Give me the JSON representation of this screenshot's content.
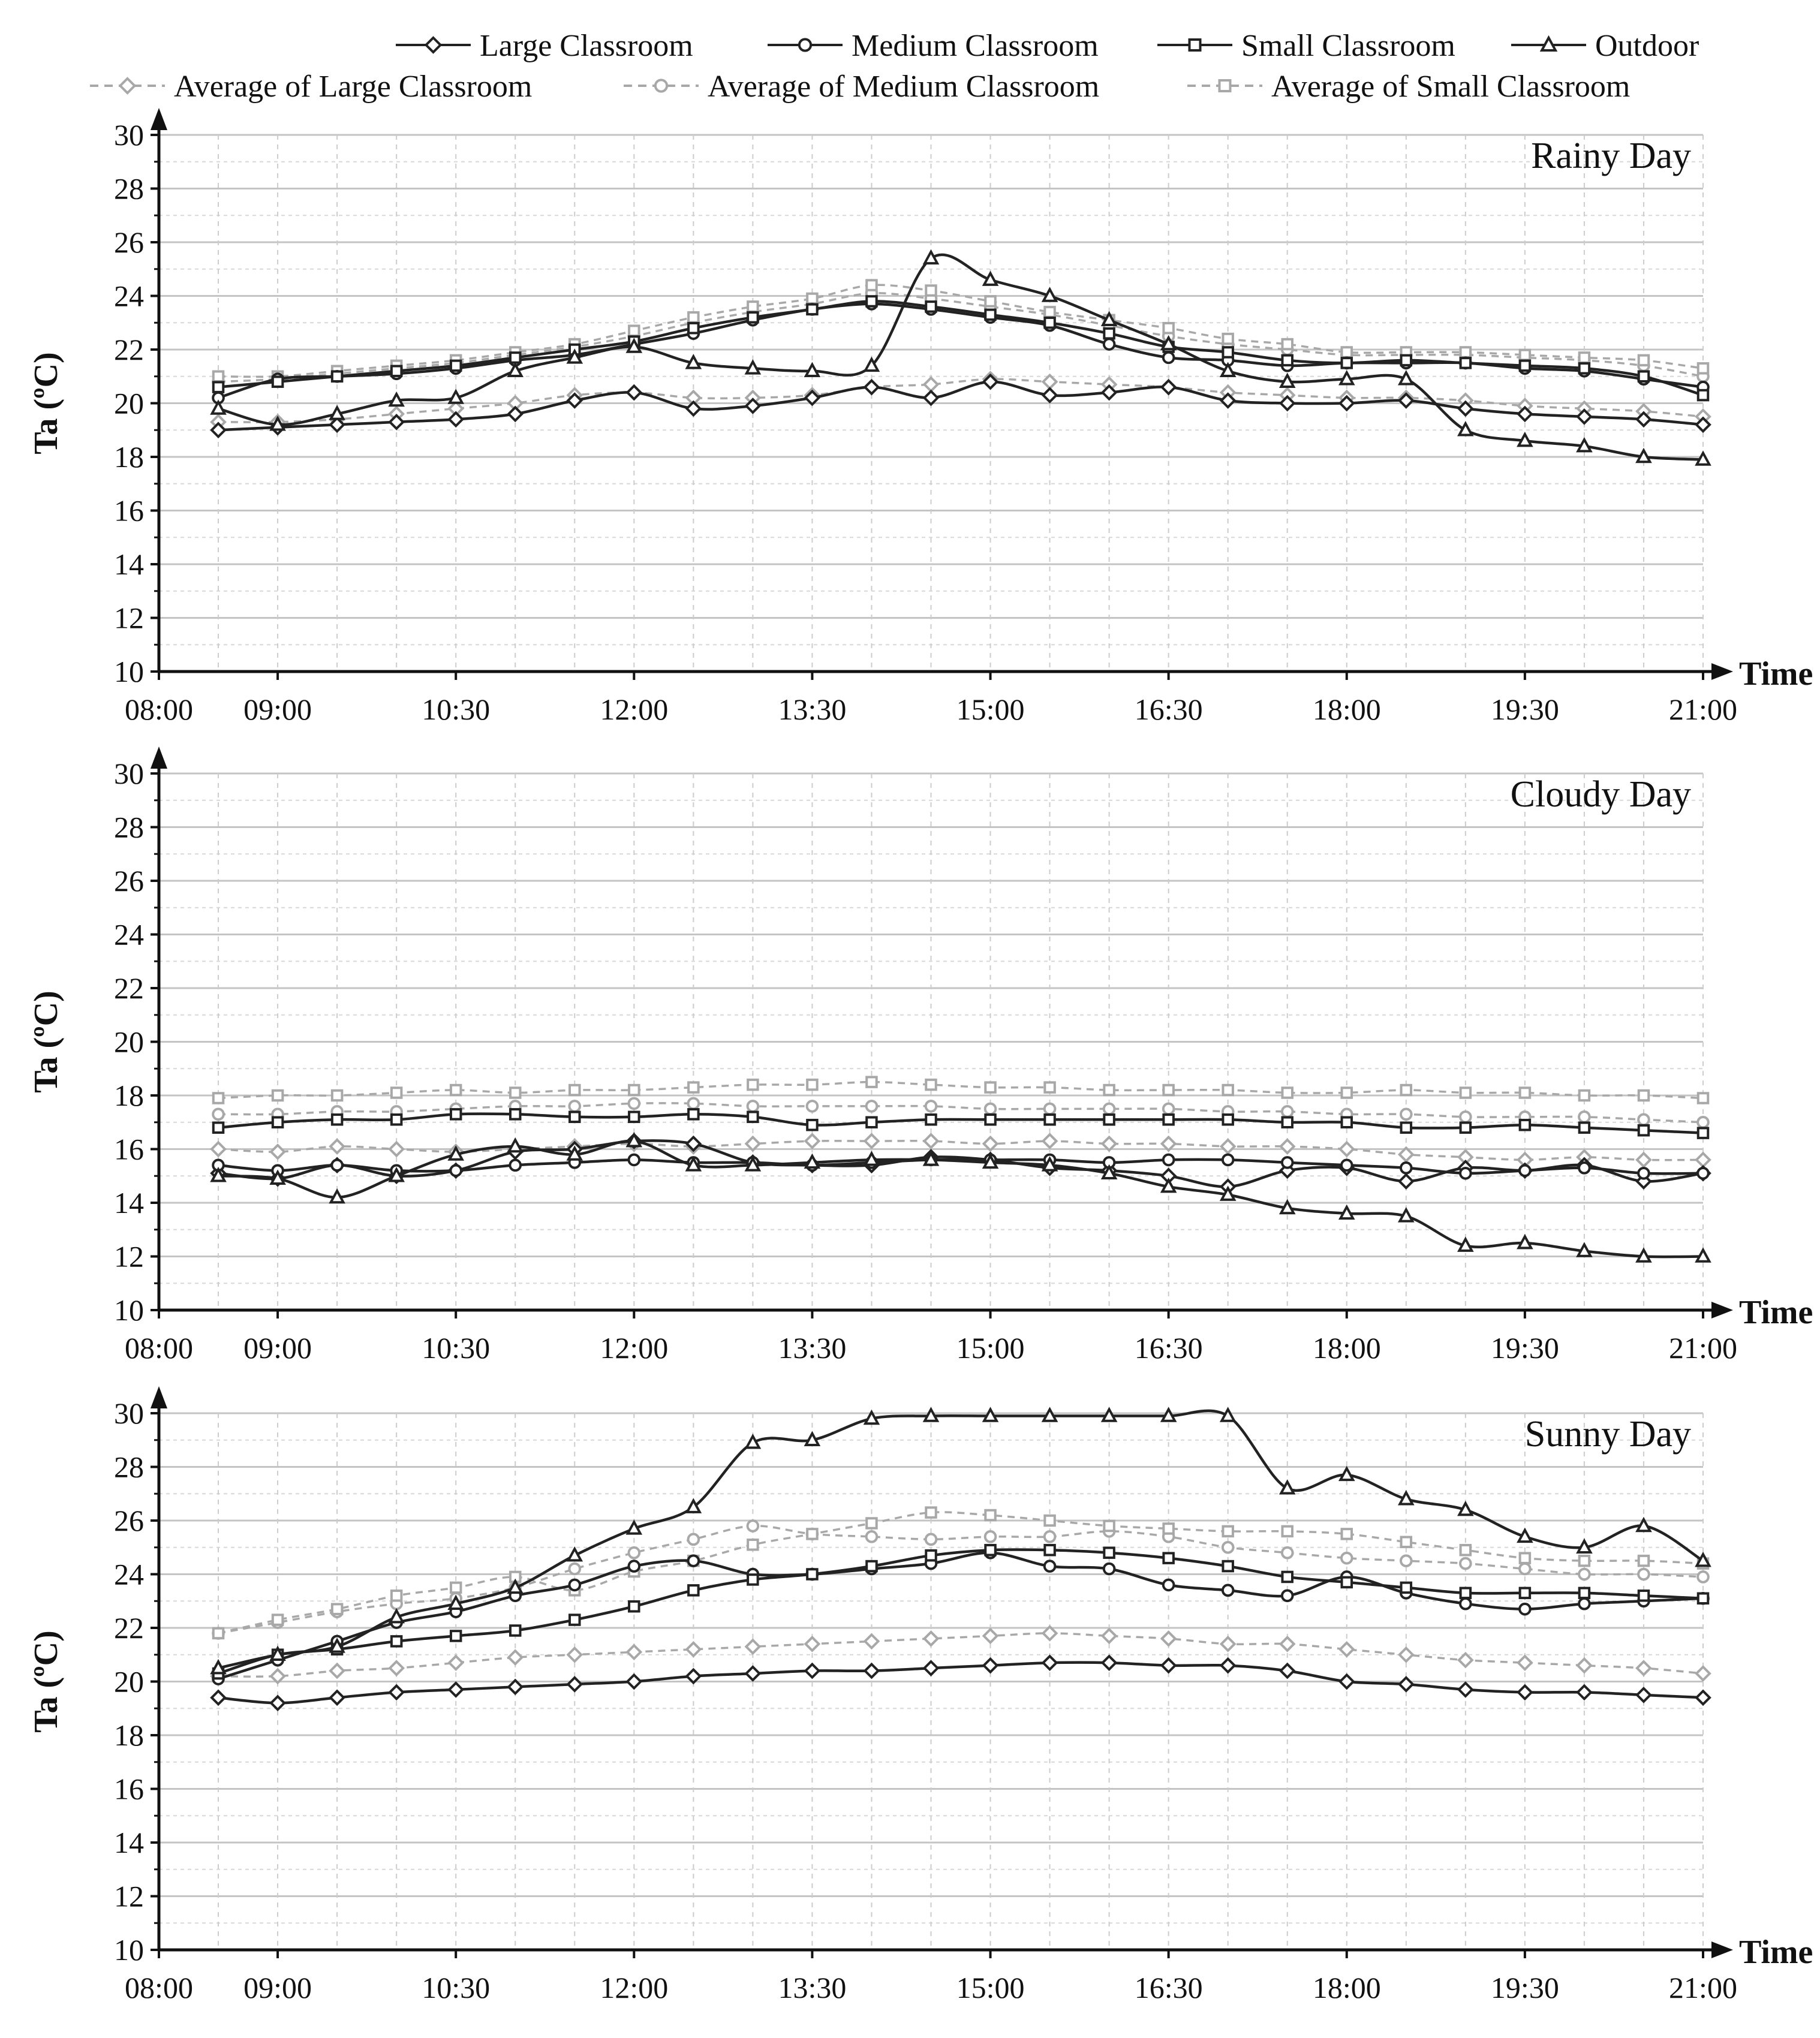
{
  "chart_data": {
    "type": "line",
    "legend": {
      "position": "top",
      "entries": [
        {
          "key": "large",
          "label": "Large Classroom",
          "marker": "diamond",
          "style": "solid"
        },
        {
          "key": "medium",
          "label": "Medium Classroom",
          "marker": "circle",
          "style": "solid"
        },
        {
          "key": "small",
          "label": "Small Classroom",
          "marker": "square",
          "style": "solid"
        },
        {
          "key": "outdoor",
          "label": "Outdoor",
          "marker": "triangle",
          "style": "solid"
        },
        {
          "key": "avg_large",
          "label": "Average of  Large Classroom",
          "marker": "diamond",
          "style": "dashed"
        },
        {
          "key": "avg_medium",
          "label": "Average of  Medium Classroom",
          "marker": "circle",
          "style": "dashed"
        },
        {
          "key": "avg_small",
          "label": "Average of  Small Classroom",
          "marker": "square",
          "style": "dashed"
        }
      ]
    },
    "colors": {
      "solid": "#222222",
      "dashed": "#a8a8a8",
      "grid": "#c8c8c8",
      "axis": "#111111"
    },
    "xlabel": "Time",
    "ylabel": "Ta (ºC)",
    "x_tick_hours": [
      8,
      9,
      10.5,
      12,
      13.5,
      15,
      16.5,
      18,
      19.5,
      21
    ],
    "x_tick_labels": [
      "08:00",
      "09:00",
      "10:30",
      "12:00",
      "13:30",
      "15:00",
      "16:30",
      "18:00",
      "19:30",
      "21:00"
    ],
    "xlim_hours": [
      8,
      21
    ],
    "ylim": [
      10,
      30
    ],
    "y_ticks": [
      10,
      12,
      14,
      16,
      18,
      20,
      22,
      24,
      26,
      28,
      30
    ],
    "x_hours": [
      8.5,
      9,
      9.5,
      10,
      10.5,
      11,
      11.5,
      12,
      12.5,
      13,
      13.5,
      14,
      14.5,
      15,
      15.5,
      16,
      16.5,
      17,
      17.5,
      18,
      18.5,
      19,
      19.5,
      20,
      20.5,
      21
    ],
    "panels": [
      {
        "title": "Rainy Day",
        "series": [
          {
            "key": "large",
            "values": [
              19.0,
              19.1,
              19.2,
              19.3,
              19.4,
              19.6,
              20.1,
              20.4,
              19.8,
              19.9,
              20.2,
              20.6,
              20.2,
              20.8,
              20.3,
              20.4,
              20.6,
              20.1,
              20.0,
              20.0,
              20.1,
              19.8,
              19.6,
              19.5,
              19.4,
              19.2
            ]
          },
          {
            "key": "medium",
            "values": [
              20.2,
              20.9,
              21.0,
              21.1,
              21.3,
              21.6,
              21.8,
              22.2,
              22.6,
              23.1,
              23.5,
              23.7,
              23.5,
              23.2,
              22.9,
              22.2,
              21.7,
              21.6,
              21.4,
              21.5,
              21.5,
              21.5,
              21.3,
              21.2,
              20.9,
              20.6
            ]
          },
          {
            "key": "small",
            "values": [
              20.6,
              20.8,
              21.0,
              21.2,
              21.4,
              21.7,
              22.0,
              22.3,
              22.8,
              23.2,
              23.5,
              23.8,
              23.6,
              23.3,
              23.0,
              22.6,
              22.1,
              21.9,
              21.6,
              21.5,
              21.6,
              21.5,
              21.4,
              21.3,
              21.0,
              20.3
            ]
          },
          {
            "key": "outdoor",
            "values": [
              19.8,
              19.2,
              19.6,
              20.1,
              20.2,
              21.2,
              21.7,
              22.1,
              21.5,
              21.3,
              21.2,
              21.4,
              25.4,
              24.6,
              24.0,
              23.1,
              22.2,
              21.2,
              20.8,
              20.9,
              20.9,
              19.0,
              18.6,
              18.4,
              18.0,
              17.9
            ]
          },
          {
            "key": "avg_large",
            "values": [
              19.3,
              19.3,
              19.4,
              19.6,
              19.8,
              20.0,
              20.3,
              20.4,
              20.2,
              20.2,
              20.3,
              20.6,
              20.7,
              20.9,
              20.8,
              20.7,
              20.6,
              20.4,
              20.3,
              20.2,
              20.2,
              20.1,
              19.9,
              19.8,
              19.7,
              19.5
            ]
          },
          {
            "key": "avg_medium",
            "values": [
              20.8,
              20.9,
              21.1,
              21.3,
              21.5,
              21.8,
              22.1,
              22.5,
              23.0,
              23.4,
              23.7,
              24.1,
              23.9,
              23.6,
              23.3,
              22.9,
              22.5,
              22.2,
              22.0,
              21.8,
              21.8,
              21.8,
              21.7,
              21.6,
              21.4,
              21.0
            ]
          },
          {
            "key": "avg_small",
            "values": [
              21.0,
              21.0,
              21.2,
              21.4,
              21.6,
              21.9,
              22.2,
              22.7,
              23.2,
              23.6,
              23.9,
              24.4,
              24.2,
              23.8,
              23.4,
              23.1,
              22.8,
              22.4,
              22.2,
              21.9,
              21.9,
              21.9,
              21.8,
              21.7,
              21.6,
              21.3
            ]
          }
        ]
      },
      {
        "title": "Cloudy Day",
        "series": [
          {
            "key": "large",
            "values": [
              15.1,
              14.9,
              15.4,
              15.0,
              15.2,
              15.9,
              16.0,
              16.3,
              16.2,
              15.5,
              15.4,
              15.4,
              15.7,
              15.6,
              15.3,
              15.2,
              15.0,
              14.6,
              15.2,
              15.3,
              14.8,
              15.3,
              15.2,
              15.4,
              14.8,
              15.1
            ]
          },
          {
            "key": "medium",
            "values": [
              15.4,
              15.2,
              15.4,
              15.2,
              15.2,
              15.4,
              15.5,
              15.6,
              15.5,
              15.5,
              15.4,
              15.5,
              15.6,
              15.6,
              15.6,
              15.5,
              15.6,
              15.6,
              15.5,
              15.4,
              15.3,
              15.1,
              15.2,
              15.3,
              15.1,
              15.1
            ]
          },
          {
            "key": "small",
            "values": [
              16.8,
              17.0,
              17.1,
              17.1,
              17.3,
              17.3,
              17.2,
              17.2,
              17.3,
              17.2,
              16.9,
              17.0,
              17.1,
              17.1,
              17.1,
              17.1,
              17.1,
              17.1,
              17.0,
              17.0,
              16.8,
              16.8,
              16.9,
              16.8,
              16.7,
              16.6
            ]
          },
          {
            "key": "outdoor",
            "values": [
              15.0,
              14.9,
              14.2,
              15.0,
              15.8,
              16.1,
              15.8,
              16.3,
              15.4,
              15.4,
              15.5,
              15.6,
              15.6,
              15.5,
              15.4,
              15.1,
              14.6,
              14.3,
              13.8,
              13.6,
              13.5,
              12.4,
              12.5,
              12.2,
              12.0,
              12.0
            ]
          },
          {
            "key": "avg_large",
            "values": [
              16.0,
              15.9,
              16.1,
              16.0,
              15.9,
              16.0,
              16.1,
              16.2,
              16.1,
              16.2,
              16.3,
              16.3,
              16.3,
              16.2,
              16.3,
              16.2,
              16.2,
              16.1,
              16.1,
              16.0,
              15.8,
              15.7,
              15.6,
              15.7,
              15.6,
              15.6
            ]
          },
          {
            "key": "avg_medium",
            "values": [
              17.3,
              17.3,
              17.4,
              17.4,
              17.5,
              17.6,
              17.6,
              17.7,
              17.7,
              17.6,
              17.6,
              17.6,
              17.6,
              17.5,
              17.5,
              17.5,
              17.5,
              17.4,
              17.4,
              17.3,
              17.3,
              17.2,
              17.2,
              17.2,
              17.1,
              17.0
            ]
          },
          {
            "key": "avg_small",
            "values": [
              17.9,
              18.0,
              18.0,
              18.1,
              18.2,
              18.1,
              18.2,
              18.2,
              18.3,
              18.4,
              18.4,
              18.5,
              18.4,
              18.3,
              18.3,
              18.2,
              18.2,
              18.2,
              18.1,
              18.1,
              18.2,
              18.1,
              18.1,
              18.0,
              18.0,
              17.9
            ]
          }
        ]
      },
      {
        "title": "Sunny Day",
        "series": [
          {
            "key": "large",
            "values": [
              19.4,
              19.2,
              19.4,
              19.6,
              19.7,
              19.8,
              19.9,
              20.0,
              20.2,
              20.3,
              20.4,
              20.4,
              20.5,
              20.6,
              20.7,
              20.7,
              20.6,
              20.6,
              20.4,
              20.0,
              19.9,
              19.7,
              19.6,
              19.6,
              19.5,
              19.4
            ]
          },
          {
            "key": "medium",
            "values": [
              20.1,
              20.8,
              21.5,
              22.2,
              22.6,
              23.2,
              23.6,
              24.3,
              24.5,
              24.0,
              24.0,
              24.2,
              24.4,
              24.8,
              24.3,
              24.2,
              23.6,
              23.4,
              23.2,
              23.9,
              23.3,
              22.9,
              22.7,
              22.9,
              23.0,
              23.1
            ]
          },
          {
            "key": "small",
            "values": [
              20.3,
              21.0,
              21.2,
              21.5,
              21.7,
              21.9,
              22.3,
              22.8,
              23.4,
              23.8,
              24.0,
              24.3,
              24.7,
              24.9,
              24.9,
              24.8,
              24.6,
              24.3,
              23.9,
              23.7,
              23.5,
              23.3,
              23.3,
              23.3,
              23.2,
              23.1
            ]
          },
          {
            "key": "outdoor",
            "values": [
              20.5,
              21.0,
              21.3,
              22.4,
              22.9,
              23.5,
              24.7,
              25.7,
              26.5,
              28.9,
              29.0,
              29.8,
              29.9,
              29.9,
              29.9,
              29.9,
              29.9,
              29.9,
              27.2,
              27.7,
              26.8,
              26.4,
              25.4,
              25.0,
              25.8,
              24.5
            ]
          },
          {
            "key": "avg_large",
            "values": [
              20.2,
              20.2,
              20.4,
              20.5,
              20.7,
              20.9,
              21.0,
              21.1,
              21.2,
              21.3,
              21.4,
              21.5,
              21.6,
              21.7,
              21.8,
              21.7,
              21.6,
              21.4,
              21.4,
              21.2,
              21.0,
              20.8,
              20.7,
              20.6,
              20.5,
              20.3
            ]
          },
          {
            "key": "avg_medium",
            "values": [
              21.8,
              22.2,
              22.6,
              22.9,
              23.1,
              23.5,
              24.2,
              24.8,
              25.3,
              25.8,
              25.5,
              25.4,
              25.3,
              25.4,
              25.4,
              25.6,
              25.4,
              25.0,
              24.8,
              24.6,
              24.5,
              24.4,
              24.2,
              24.0,
              24.0,
              23.9
            ]
          },
          {
            "key": "avg_small",
            "values": [
              21.8,
              22.3,
              22.7,
              23.2,
              23.5,
              23.9,
              23.4,
              24.1,
              24.5,
              25.1,
              25.5,
              25.9,
              26.3,
              26.2,
              26.0,
              25.8,
              25.7,
              25.6,
              25.6,
              25.5,
              25.2,
              24.9,
              24.6,
              24.5,
              24.5,
              24.4
            ]
          }
        ]
      }
    ]
  }
}
